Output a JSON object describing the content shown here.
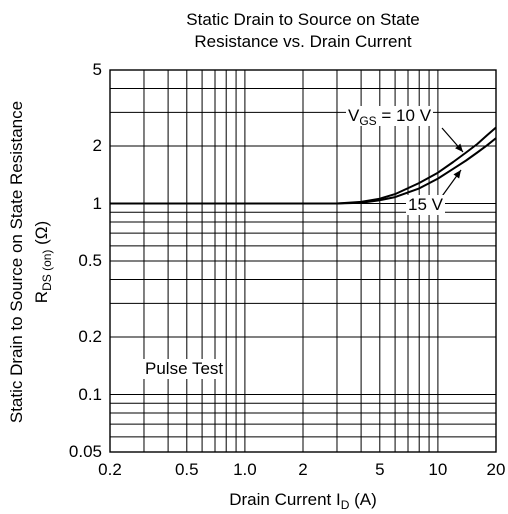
{
  "chart_data": {
    "type": "line",
    "title_lines": [
      "Static Drain to Source on State",
      "Resistance vs. Drain Current"
    ],
    "xlabel": {
      "text": "Drain Current  I",
      "sub": "D",
      "unit": "  (A)"
    },
    "ylabel": {
      "outer": "Static Drain to Source on State Resistance",
      "symbol": "R",
      "sub": "DS (on)",
      "unit": "  (Ω)"
    },
    "x_scale": "log",
    "y_scale": "log",
    "xlim": [
      0.2,
      20
    ],
    "ylim": [
      0.05,
      5
    ],
    "x_ticks": [
      {
        "value": 0.2,
        "label": "0.2"
      },
      {
        "value": 0.5,
        "label": "0.5"
      },
      {
        "value": 1.0,
        "label": "1.0"
      },
      {
        "value": 2,
        "label": "2"
      },
      {
        "value": 5,
        "label": "5"
      },
      {
        "value": 10,
        "label": "10"
      },
      {
        "value": 20,
        "label": "20"
      }
    ],
    "y_ticks": [
      {
        "value": 0.05,
        "label": "0.05"
      },
      {
        "value": 0.1,
        "label": "0.1"
      },
      {
        "value": 0.2,
        "label": "0.2"
      },
      {
        "value": 0.5,
        "label": "0.5"
      },
      {
        "value": 1,
        "label": "1"
      },
      {
        "value": 2,
        "label": "2"
      },
      {
        "value": 5,
        "label": "5"
      }
    ],
    "grid": true,
    "series": [
      {
        "name": "VGS = 10 V",
        "label": {
          "prefix": "V",
          "sub": "GS",
          "suffix": " = 10 V"
        },
        "x": [
          0.2,
          1,
          3,
          4,
          5,
          6,
          8,
          10,
          12,
          14,
          16,
          18,
          20
        ],
        "y": [
          1.0,
          1.0,
          1.0,
          1.02,
          1.06,
          1.12,
          1.28,
          1.45,
          1.65,
          1.85,
          2.05,
          2.28,
          2.5
        ]
      },
      {
        "name": "15 V",
        "label": {
          "prefix": "15 V",
          "sub": "",
          "suffix": ""
        },
        "x": [
          0.2,
          1,
          3,
          4,
          5,
          6,
          8,
          10,
          12,
          14,
          16,
          18,
          20
        ],
        "y": [
          1.0,
          1.0,
          1.0,
          1.01,
          1.04,
          1.08,
          1.2,
          1.35,
          1.52,
          1.68,
          1.85,
          2.02,
          2.2
        ]
      }
    ],
    "annotation": "Pulse Test"
  }
}
